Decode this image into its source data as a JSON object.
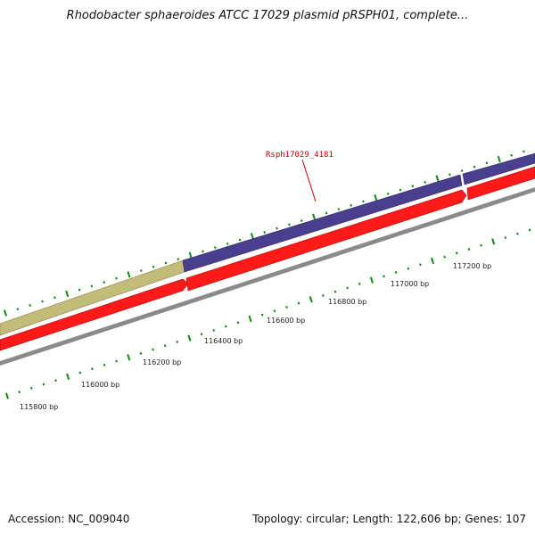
{
  "title": "Rhodobacter sphaeroides ATCC 17029 plasmid pRSPH01, complete...",
  "footer": {
    "accession": "Accession: NC_009040",
    "summary": "Topology: circular; Length: 122,606 bp; Genes: 107"
  },
  "colors": {
    "feature_olive": "#c2bc78",
    "feature_purple": "#4a3f8e",
    "cds_red": "#ff1a1a",
    "backbone": "#888888",
    "tick_green": "#118811",
    "label_red": "#cc0000"
  },
  "gene_label": "Rsph17029_4181",
  "scale_labels": [
    "115800 bp",
    "116000 bp",
    "116200 bp",
    "116400 bp",
    "116600 bp",
    "116800 bp",
    "117000 bp",
    "117200 bp"
  ]
}
